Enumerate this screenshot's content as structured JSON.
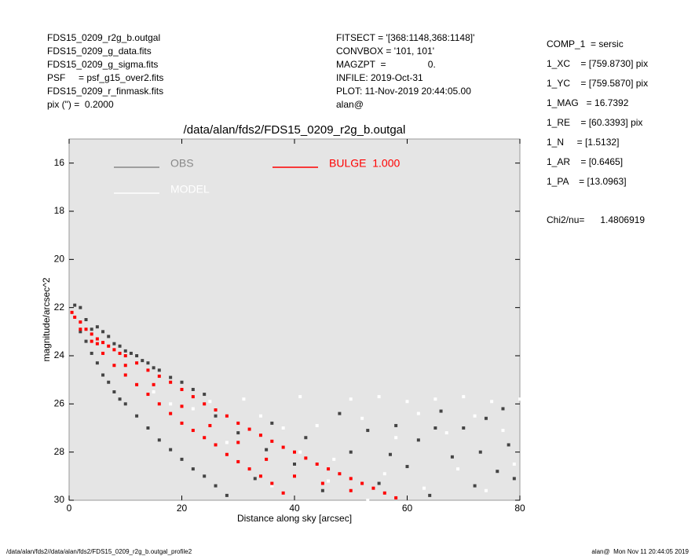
{
  "header": {
    "left": [
      "FDS15_0209_r2g_b.outgal",
      "FDS15_0209_g_data.fits",
      "FDS15_0209_g_sigma.fits",
      "PSF     = psf_g15_over2.fits",
      "FDS15_0209_r_finmask.fits",
      "pix (\") =  0.2000"
    ],
    "middle": [
      "FITSECT = '[368:1148,368:1148]'",
      "CONVBOX = '101, 101'",
      "MAGZPT  =                0.",
      "INFILE: 2019-Oct-31",
      "PLOT: 11-Nov-2019 20:44:05.00",
      "alan@"
    ],
    "right": [
      "COMP_1  = sersic",
      "1_XC    = [759.8730] pix",
      "1_YC    = [759.5870] pix",
      "1_MAG   = 16.7392",
      "1_RE    = [60.3393] pix",
      "1_N     = [1.5132]",
      "1_AR    = [0.6465]",
      "1_PA    = [13.0963]"
    ],
    "chi2": "Chi2/nu=      1.4806919"
  },
  "footer": {
    "left": "/data/alan/fds2//data/alan/fds2/FDS15_0209_r2g_b.outgal_profile2",
    "right": "alan@  Mon Nov 11 20:44:05 2019"
  },
  "chart_data": {
    "type": "scatter",
    "title": "/data/alan/fds2/FDS15_0209_r2g_b.outgal",
    "x_label": "Distance along sky [arcsec]",
    "y_label": "magnitude/arcsec^2",
    "xlim": [
      0,
      80
    ],
    "xticks": [
      0,
      20,
      40,
      60,
      80
    ],
    "ylim": [
      30,
      15
    ],
    "yticks": [
      16,
      18,
      20,
      22,
      24,
      26,
      28,
      30
    ],
    "background": "#e5e5e5",
    "series": [
      {
        "name": "OBS",
        "color": "#888888",
        "point_color": "#444444",
        "x": [
          1,
          2,
          3,
          4,
          5,
          6,
          7,
          8,
          9,
          10,
          11,
          12,
          13,
          14,
          15,
          16,
          18,
          20,
          22,
          24,
          2,
          3,
          4,
          5,
          6,
          7,
          8,
          9,
          10,
          12,
          14,
          16,
          18,
          20,
          22,
          24,
          26,
          28,
          26,
          30,
          33,
          36,
          40,
          42,
          45,
          48,
          50,
          53,
          55,
          58,
          60,
          62,
          64,
          66,
          68,
          70,
          72,
          74,
          76,
          78,
          79,
          35,
          57,
          65,
          73,
          77
        ],
        "y": [
          21.9,
          22.0,
          22.5,
          22.9,
          22.8,
          23.0,
          23.2,
          23.5,
          23.6,
          23.8,
          23.9,
          24.0,
          24.2,
          24.3,
          24.5,
          24.6,
          24.9,
          25.1,
          25.4,
          25.6,
          23.0,
          23.4,
          23.9,
          24.3,
          24.8,
          25.1,
          25.5,
          25.8,
          26.0,
          26.5,
          27.0,
          27.5,
          27.9,
          28.3,
          28.7,
          29.0,
          29.4,
          29.8,
          26.5,
          27.2,
          29.1,
          26.8,
          28.5,
          27.4,
          29.6,
          26.4,
          28.0,
          27.1,
          29.3,
          26.9,
          28.6,
          27.5,
          29.8,
          26.3,
          28.2,
          27.0,
          29.4,
          26.6,
          28.8,
          27.7,
          29.1,
          27.9,
          28.1,
          27.0,
          28.0,
          26.2
        ]
      },
      {
        "name": "MODEL",
        "color": "#ffffff",
        "point_color": "#ffffff",
        "x": [
          15,
          18,
          22,
          25,
          28,
          31,
          34,
          38,
          41,
          44,
          47,
          50,
          52,
          55,
          58,
          60,
          62,
          65,
          67,
          70,
          72,
          75,
          77,
          80,
          36,
          46,
          56,
          63,
          69,
          74,
          79,
          41,
          53
        ],
        "y": [
          25.5,
          26.0,
          26.2,
          25.9,
          27.6,
          25.8,
          26.5,
          27.0,
          25.7,
          26.9,
          28.3,
          25.8,
          26.6,
          25.7,
          27.4,
          25.9,
          26.4,
          25.8,
          27.2,
          25.7,
          26.5,
          25.9,
          27.1,
          25.8,
          29.4,
          29.2,
          28.9,
          29.5,
          28.7,
          29.6,
          28.5,
          28.0,
          30.0
        ]
      },
      {
        "name": "BULGE  1.000",
        "color": "#ff0000",
        "point_color": "#ff0000",
        "x": [
          0.5,
          1,
          2,
          3,
          4,
          5,
          6,
          7,
          8,
          9,
          10,
          12,
          14,
          16,
          18,
          20,
          22,
          24,
          26,
          28,
          30,
          32,
          34,
          36,
          38,
          40,
          42,
          44,
          46,
          48,
          50,
          52,
          54,
          56,
          58,
          2,
          4,
          6,
          8,
          10,
          12,
          14,
          16,
          18,
          20,
          22,
          24,
          26,
          28,
          30,
          32,
          34,
          36,
          38,
          5,
          10,
          15,
          20,
          25,
          30,
          35,
          40,
          45,
          50
        ],
        "y": [
          22.2,
          22.4,
          22.6,
          22.9,
          23.1,
          23.3,
          23.45,
          23.6,
          23.75,
          23.9,
          24.0,
          24.3,
          24.6,
          24.85,
          25.1,
          25.4,
          25.7,
          26.0,
          26.25,
          26.5,
          26.8,
          27.05,
          27.3,
          27.55,
          27.8,
          28.0,
          28.25,
          28.5,
          28.7,
          28.9,
          29.1,
          29.3,
          29.5,
          29.7,
          29.9,
          22.9,
          23.4,
          23.9,
          24.4,
          24.8,
          25.2,
          25.6,
          26.0,
          26.4,
          26.8,
          27.1,
          27.4,
          27.7,
          28.1,
          28.4,
          28.7,
          29.0,
          29.3,
          29.7,
          23.5,
          24.4,
          25.2,
          26.1,
          26.9,
          27.6,
          28.3,
          29.0,
          29.3,
          29.6
        ]
      }
    ]
  }
}
